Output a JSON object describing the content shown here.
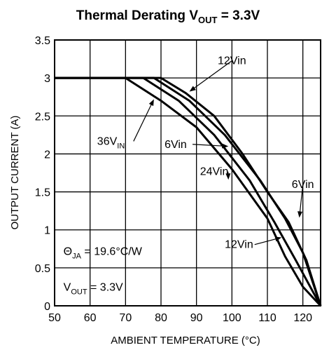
{
  "chart_data": {
    "type": "line",
    "title": {
      "main": "Thermal Derating V",
      "sub": "OUT",
      "rest": " = 3.3V"
    },
    "xlabel": "AMBIENT TEMPERATURE (°C)",
    "ylabel": "OUTPUT CURRENT (A)",
    "xlim": [
      50,
      125
    ],
    "ylim": [
      0,
      3.5
    ],
    "x_ticks": [
      50,
      60,
      70,
      80,
      90,
      100,
      110,
      120
    ],
    "y_ticks": [
      0,
      0.5,
      1,
      1.5,
      2,
      2.5,
      3,
      3.5
    ],
    "grid": true,
    "series": [
      {
        "name": "36VIN",
        "x": [
          50,
          70,
          80,
          90,
          100,
          110,
          115,
          120,
          125
        ],
        "y": [
          3,
          3,
          2.7,
          2.35,
          1.8,
          1.15,
          0.65,
          0.25,
          0
        ]
      },
      {
        "name": "24Vin",
        "x": [
          50,
          75,
          85,
          95,
          105,
          112,
          118,
          125
        ],
        "y": [
          3,
          3,
          2.7,
          2.25,
          1.65,
          1.1,
          0.6,
          0
        ]
      },
      {
        "name": "6Vin",
        "x": [
          50,
          78,
          88,
          98,
          108,
          115,
          120,
          125
        ],
        "y": [
          3,
          3,
          2.7,
          2.25,
          1.65,
          1.15,
          0.7,
          0
        ]
      },
      {
        "name": "12Vin",
        "x": [
          50,
          80,
          87,
          95,
          103,
          110,
          116,
          121,
          125
        ],
        "y": [
          3,
          3,
          2.8,
          2.5,
          2.0,
          1.5,
          1.1,
          0.6,
          0
        ]
      }
    ],
    "annotations": [
      {
        "text": "12Vin",
        "sub": "",
        "tx": 100,
        "ty": 3.18,
        "ax": 88,
        "ay": 2.82,
        "anchor": "middle"
      },
      {
        "text": "36V",
        "sub": "IN",
        "tx": 62,
        "ty": 2.12,
        "ax": 78,
        "ay": 2.72,
        "anchor": "start"
      },
      {
        "text": "6Vin",
        "sub": "",
        "tx": 81,
        "ty": 2.08,
        "ax": 99,
        "ay": 2.1,
        "anchor": "start"
      },
      {
        "text": "24Vin",
        "sub": "",
        "tx": 91,
        "ty": 1.72,
        "ax": 99,
        "ay": 1.66,
        "anchor": "start"
      },
      {
        "text": "6Vin",
        "sub": "",
        "tx": 120,
        "ty": 1.55,
        "ax": 119,
        "ay": 1.16,
        "anchor": "middle"
      },
      {
        "text": "12Vin",
        "sub": "",
        "tx": 106,
        "ty": 0.76,
        "ax": 114,
        "ay": 0.9,
        "anchor": "end"
      }
    ],
    "info": [
      {
        "sym": "Θ",
        "sub": "JA",
        "rest": " = 19.6°C/W",
        "x": 52.5,
        "y": 0.67
      },
      {
        "sym": "V",
        "sub": "OUT",
        "rest": " = 3.3V",
        "x": 52.5,
        "y": 0.2
      }
    ]
  }
}
